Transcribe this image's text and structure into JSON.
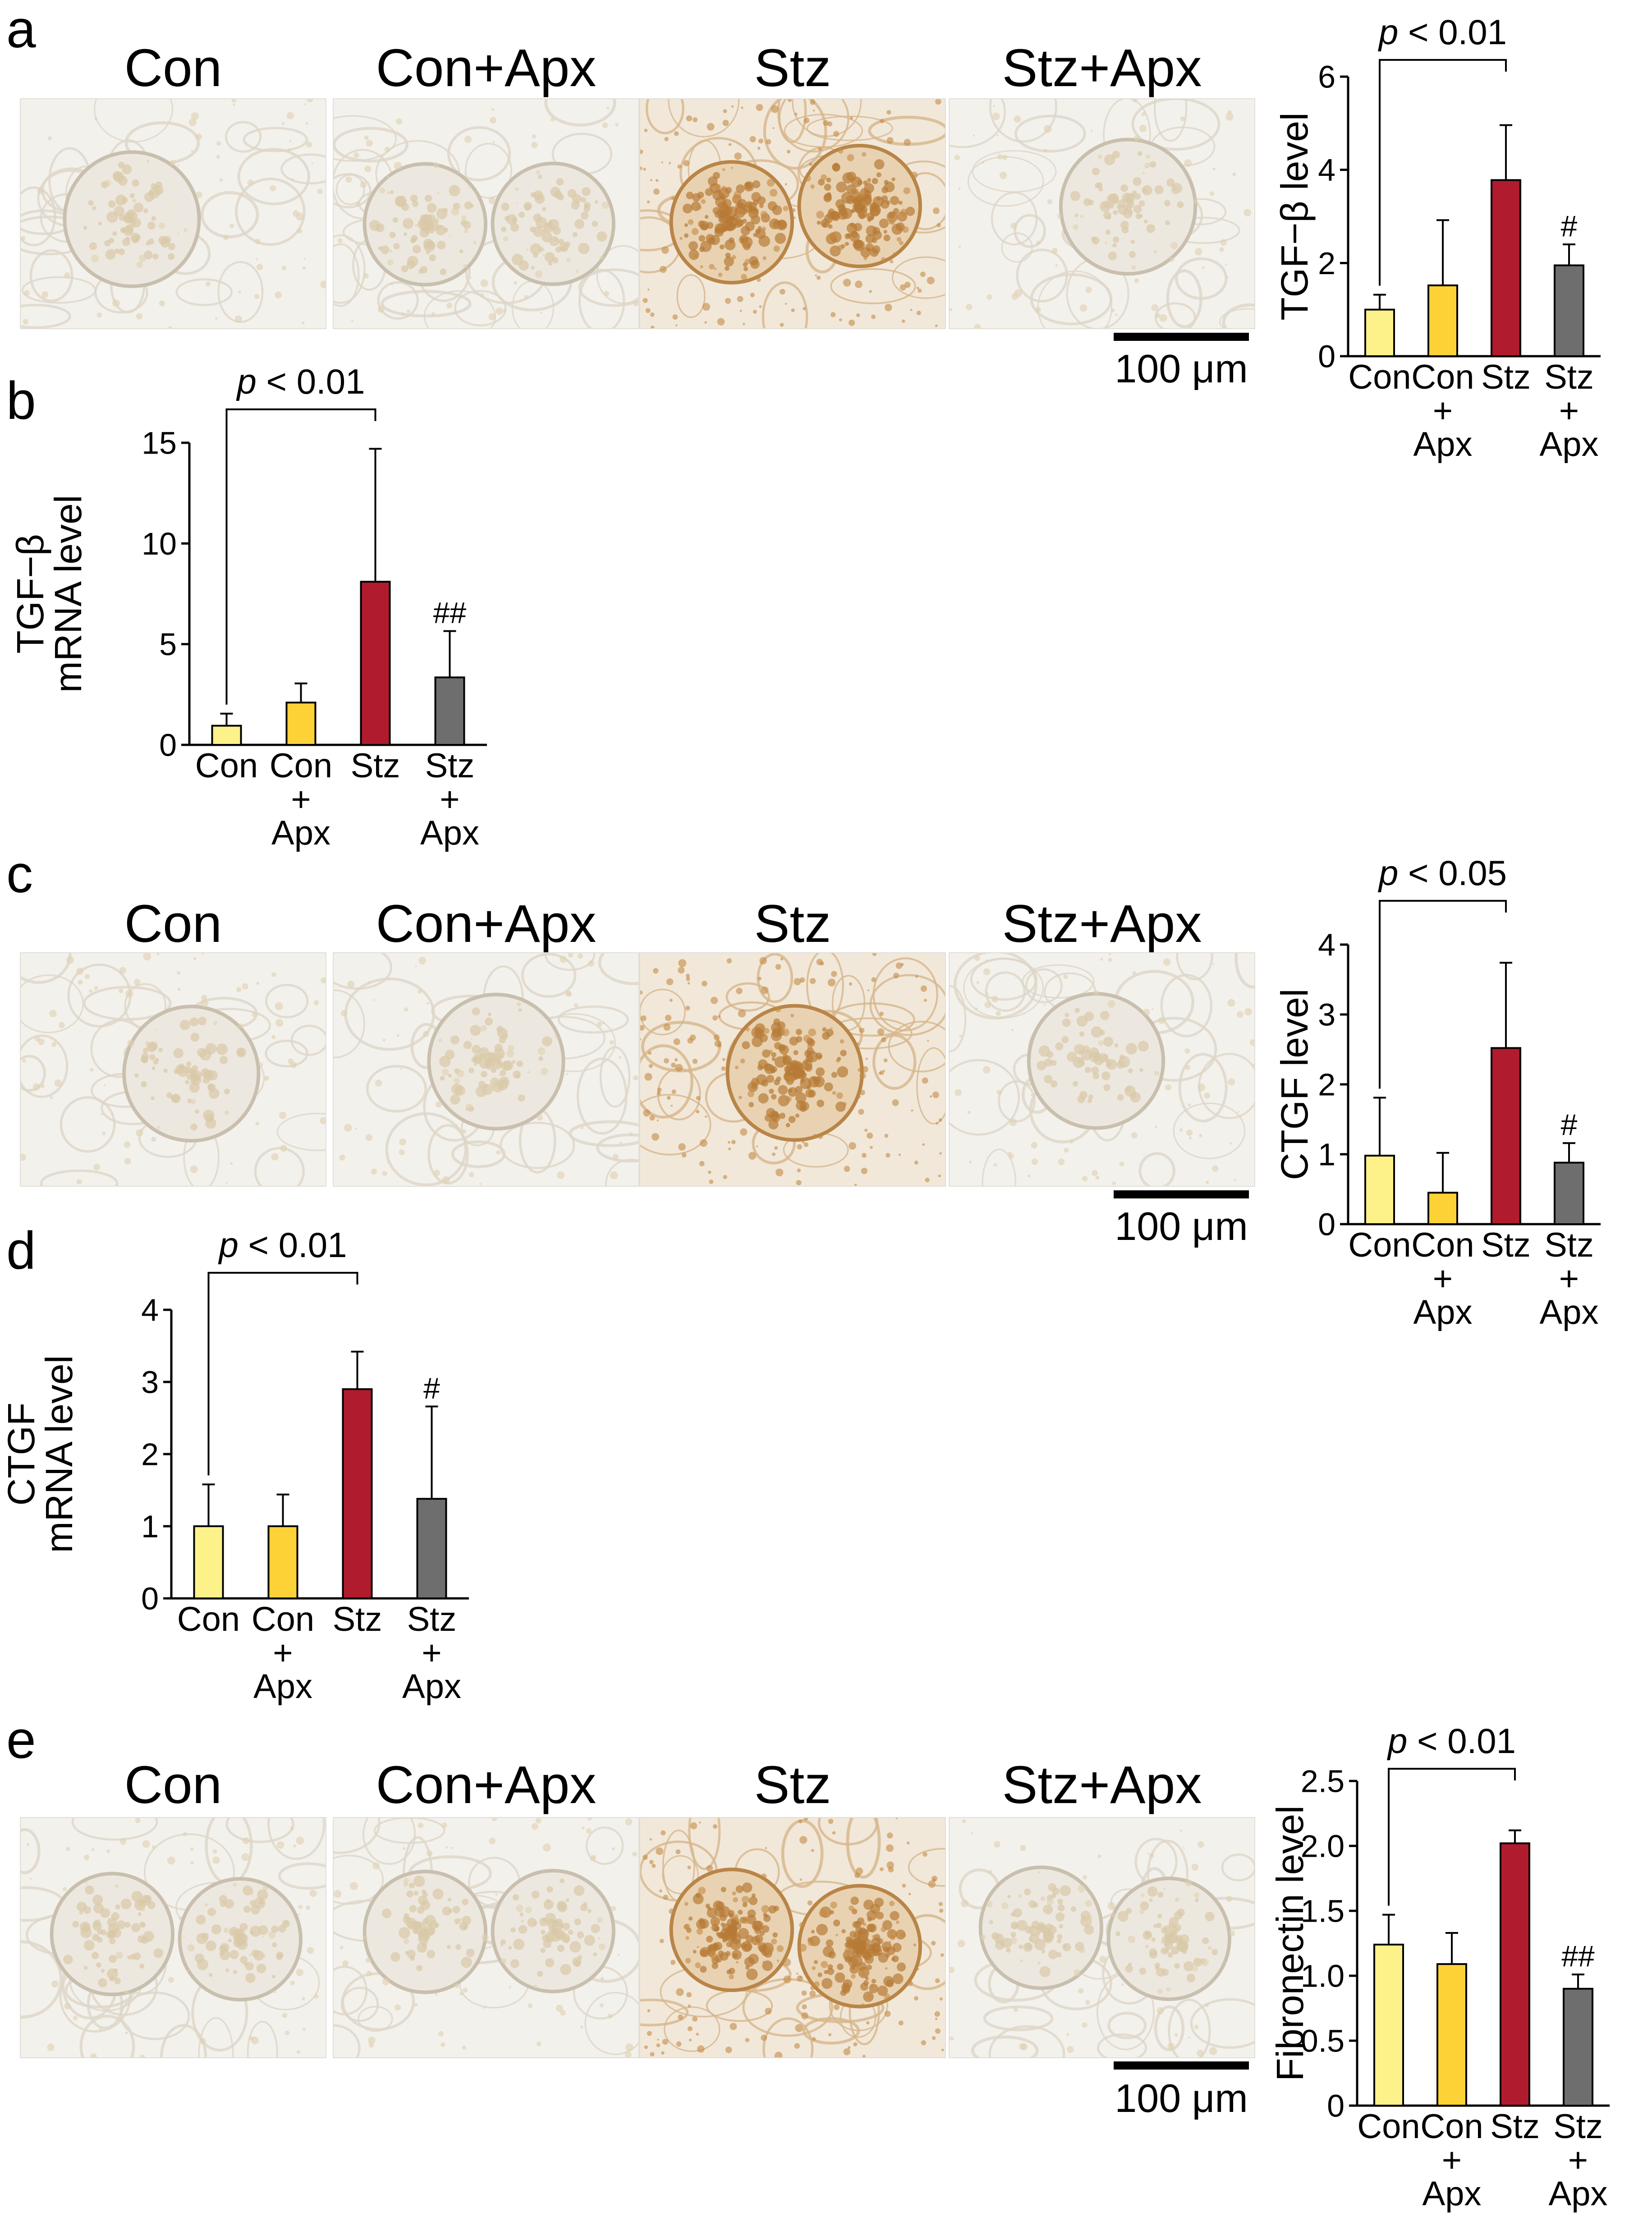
{
  "colors": {
    "con": "#fdf18a",
    "con_apx": "#fcd236",
    "stz": "#b01c2e",
    "stz_apx": "#6e6e6e",
    "stain": "#c98a3c",
    "background": "#f4f2ee"
  },
  "panels": {
    "a": {
      "letter": "a",
      "image_labels": [
        "Con",
        "Con+Apx",
        "Stz",
        "Stz+Apx"
      ],
      "scale_bar": "100 μm"
    },
    "b": {
      "letter": "b"
    },
    "c": {
      "letter": "c",
      "image_labels": [
        "Con",
        "Con+Apx",
        "Stz",
        "Stz+Apx"
      ],
      "scale_bar": "100 μm"
    },
    "d": {
      "letter": "d"
    },
    "e": {
      "letter": "e",
      "image_labels": [
        "Con",
        "Con+Apx",
        "Stz",
        "Stz+Apx"
      ],
      "scale_bar": "100 μm"
    }
  },
  "chart_data": [
    {
      "id": "a",
      "type": "bar",
      "categories": [
        [
          "Con"
        ],
        [
          "Con",
          "+",
          "Apx"
        ],
        [
          "Stz"
        ],
        [
          "Stz",
          "+",
          "Apx"
        ]
      ],
      "values": [
        1.0,
        1.52,
        3.78,
        1.95
      ],
      "errors": [
        0.32,
        1.4,
        1.18,
        0.45
      ],
      "ylabel": [
        "TGF−β level"
      ],
      "ylim": [
        0,
        6
      ],
      "yticks": [
        "0",
        "2",
        "4",
        "6"
      ],
      "significance": {
        "from": 0,
        "to": 2,
        "p_italic": "p",
        "p_text": " < 0.01"
      },
      "marks": [
        "",
        "",
        "",
        "#"
      ]
    },
    {
      "id": "b",
      "type": "bar",
      "categories": [
        [
          "Con"
        ],
        [
          "Con",
          "+",
          "Apx"
        ],
        [
          "Stz"
        ],
        [
          "Stz",
          "+",
          "Apx"
        ]
      ],
      "values": [
        0.95,
        2.1,
        8.1,
        3.35
      ],
      "errors": [
        0.6,
        0.95,
        6.6,
        2.3
      ],
      "ylabel": [
        "TGF−β",
        "mRNA level"
      ],
      "ylim": [
        0,
        15
      ],
      "yticks": [
        "0",
        "5",
        "10",
        "15"
      ],
      "significance": {
        "from": 0,
        "to": 2,
        "p_italic": "p",
        "p_text": " < 0.01"
      },
      "marks": [
        "",
        "",
        "",
        "##"
      ]
    },
    {
      "id": "c",
      "type": "bar",
      "categories": [
        [
          "Con"
        ],
        [
          "Con",
          "+",
          "Apx"
        ],
        [
          "Stz"
        ],
        [
          "Stz",
          "+",
          "Apx"
        ]
      ],
      "values": [
        0.98,
        0.45,
        2.52,
        0.88
      ],
      "errors": [
        0.83,
        0.57,
        1.22,
        0.28
      ],
      "ylabel": [
        "CTGF level"
      ],
      "ylim": [
        0,
        4
      ],
      "yticks": [
        "0",
        "1",
        "2",
        "3",
        "4"
      ],
      "significance": {
        "from": 0,
        "to": 2,
        "p_italic": "p",
        "p_text": " < 0.05"
      },
      "marks": [
        "",
        "",
        "",
        "#"
      ]
    },
    {
      "id": "d",
      "type": "bar",
      "categories": [
        [
          "Con"
        ],
        [
          "Con",
          "+",
          "Apx"
        ],
        [
          "Stz"
        ],
        [
          "Stz",
          "+",
          "Apx"
        ]
      ],
      "values": [
        1.0,
        1.0,
        2.9,
        1.38
      ],
      "errors": [
        0.58,
        0.44,
        0.52,
        1.28
      ],
      "ylabel": [
        "CTGF",
        "mRNA level"
      ],
      "ylim": [
        0,
        4
      ],
      "yticks": [
        "0",
        "1",
        "2",
        "3",
        "4"
      ],
      "significance": {
        "from": 0,
        "to": 2,
        "p_italic": "p",
        "p_text": " < 0.01"
      },
      "marks": [
        "",
        "",
        "",
        "#"
      ]
    },
    {
      "id": "e",
      "type": "bar",
      "categories": [
        [
          "Con"
        ],
        [
          "Con",
          "+",
          "Apx"
        ],
        [
          "Stz"
        ],
        [
          "Stz",
          "+",
          "Apx"
        ]
      ],
      "values": [
        1.24,
        1.09,
        2.02,
        0.9
      ],
      "errors": [
        0.23,
        0.24,
        0.1,
        0.11
      ],
      "ylabel": [
        "Fibronectin level"
      ],
      "ylim": [
        0,
        2.5
      ],
      "yticks": [
        "0",
        "0.5",
        "1.0",
        "1.5",
        "2.0",
        "2.5"
      ],
      "significance": {
        "from": 0,
        "to": 2,
        "p_italic": "p",
        "p_text": " < 0.01"
      },
      "marks": [
        "",
        "",
        "",
        "##"
      ]
    }
  ]
}
